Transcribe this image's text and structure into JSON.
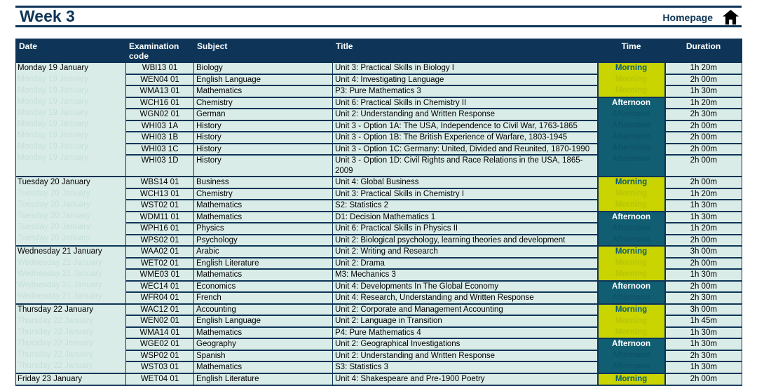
{
  "page": {
    "title": "Week 3",
    "homepage_label": "Homepage"
  },
  "colors": {
    "navy": "#0e3557",
    "row_bg": "#daece8",
    "morning_bg": "#c9d400",
    "morning_text": "#0d5d72",
    "afternoon_bg": "#115e72",
    "afternoon_text": "#ffffff"
  },
  "table": {
    "headers": [
      "Date",
      "Examination code",
      "Subject",
      "Title",
      "Time",
      "Duration"
    ],
    "days": [
      {
        "date": "Monday 19 January",
        "sessions": [
          {
            "time": "Morning",
            "rows": [
              {
                "code": "WBI13 01",
                "subject": "Biology",
                "title": "Unit 3: Practical Skills in Biology I",
                "duration": "1h 20m"
              },
              {
                "code": "WEN04 01",
                "subject": "English Language",
                "title": "Unit 4: Investigating Language",
                "duration": "2h 00m"
              },
              {
                "code": "WMA13 01",
                "subject": "Mathematics",
                "title": "P3: Pure Mathematics 3",
                "duration": "1h 30m"
              }
            ]
          },
          {
            "time": "Afternoon",
            "rows": [
              {
                "code": "WCH16 01",
                "subject": "Chemistry",
                "title": "Unit 6: Practical Skills in Chemistry II",
                "duration": "1h 20m"
              },
              {
                "code": "WGN02 01",
                "subject": "German",
                "title": "Unit 2: Understanding and Written Response",
                "duration": "2h 30m"
              },
              {
                "code": "WHI03 1A",
                "subject": "History",
                "title": "Unit 3 - Option 1A: The USA, Independence to Civil War, 1763-1865",
                "duration": "2h 00m"
              },
              {
                "code": "WHI03 1B",
                "subject": "History",
                "title": "Unit 3 - Option 1B: The British Experience of Warfare, 1803-1945",
                "duration": "2h 00m"
              },
              {
                "code": "WHI03 1C",
                "subject": "History",
                "title": "Unit 3 - Option 1C: Germany: United, Divided and Reunited, 1870-1990",
                "duration": "2h 00m"
              },
              {
                "code": "WHI03 1D",
                "subject": "History",
                "title": "Unit 3 - Option 1D: Civil Rights and Race Relations in the USA, 1865-2009",
                "duration": "2h 00m"
              }
            ]
          }
        ]
      },
      {
        "date": "Tuesday 20 January",
        "sessions": [
          {
            "time": "Morning",
            "rows": [
              {
                "code": "WBS14 01",
                "subject": "Business",
                "title": "Unit 4: Global Business",
                "duration": "2h 00m"
              },
              {
                "code": "WCH13 01",
                "subject": "Chemistry",
                "title": "Unit 3: Practical Skills in Chemistry I",
                "duration": "1h 20m"
              },
              {
                "code": "WST02 01",
                "subject": "Mathematics",
                "title": "S2: Statistics 2",
                "duration": "1h 30m"
              }
            ]
          },
          {
            "time": "Afternoon",
            "rows": [
              {
                "code": "WDM11 01",
                "subject": "Mathematics",
                "title": "D1: Decision Mathematics 1",
                "duration": "1h 30m"
              },
              {
                "code": "WPH16 01",
                "subject": "Physics",
                "title": "Unit 6: Practical Skills in Physics II",
                "duration": "1h 20m"
              },
              {
                "code": "WPS02 01",
                "subject": "Psychology",
                "title": "Unit 2: Biological psychology, learning theories and development",
                "duration": "2h 00m"
              }
            ]
          }
        ]
      },
      {
        "date": "Wednesday 21 January",
        "sessions": [
          {
            "time": "Morning",
            "rows": [
              {
                "code": "WAA02 01",
                "subject": "Arabic",
                "title": "Unit 2: Writing and Research",
                "duration": "3h 00m"
              },
              {
                "code": "WET02 01",
                "subject": "English Literature",
                "title": "Unit 2: Drama",
                "duration": "2h 00m"
              },
              {
                "code": "WME03 01",
                "subject": "Mathematics",
                "title": "M3: Mechanics 3",
                "duration": "1h 30m"
              }
            ]
          },
          {
            "time": "Afternoon",
            "rows": [
              {
                "code": "WEC14 01",
                "subject": "Economics",
                "title": "Unit 4: Developments In The Global Economy",
                "duration": "2h 00m"
              },
              {
                "code": "WFR04 01",
                "subject": "French",
                "title": "Unit 4: Research, Understanding and Written Response",
                "duration": "2h 30m"
              }
            ]
          }
        ]
      },
      {
        "date": "Thursday 22 January",
        "sessions": [
          {
            "time": "Morning",
            "rows": [
              {
                "code": "WAC12 01",
                "subject": "Accounting",
                "title": "Unit 2: Corporate and Management Accounting",
                "duration": "3h 00m"
              },
              {
                "code": "WEN02 01",
                "subject": "English Language",
                "title": "Unit 2: Language in Transition",
                "duration": "1h 45m"
              },
              {
                "code": "WMA14 01",
                "subject": "Mathematics",
                "title": "P4: Pure Mathematics 4",
                "duration": "1h 30m"
              }
            ]
          },
          {
            "time": "Afternoon",
            "rows": [
              {
                "code": "WGE02 01",
                "subject": "Geography",
                "title": "Unit 2: Geographical Investigations",
                "duration": "1h 30m"
              },
              {
                "code": "WSP02 01",
                "subject": "Spanish",
                "title": "Unit 2: Understanding and Written Response",
                "duration": "2h 30m"
              },
              {
                "code": "WST03 01",
                "subject": "Mathematics",
                "title": "S3: Statistics 3",
                "duration": "1h 30m"
              }
            ]
          }
        ]
      },
      {
        "date": "Friday 23 January",
        "sessions": [
          {
            "time": "Morning",
            "rows": [
              {
                "code": "WET04 01",
                "subject": "English Literature",
                "title": "Unit 4: Shakespeare and Pre-1900 Poetry",
                "duration": "2h 00m"
              }
            ]
          }
        ]
      }
    ]
  }
}
